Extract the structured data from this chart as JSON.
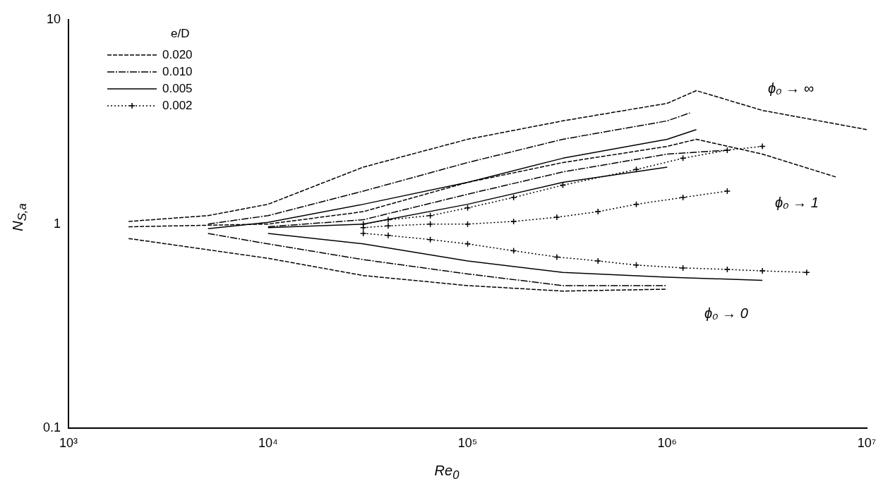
{
  "chart_data": {
    "type": "line",
    "xlabel": "Re$_{0}$",
    "ylabel": "N$_{S,a}$",
    "legend_title": "e/D",
    "legend": "top left",
    "log": "xy",
    "grid": false,
    "xlim": [
      1000,
      10000000
    ],
    "xticks": [
      {
        "value": 1000,
        "label": "10³"
      },
      {
        "value": 10000,
        "label": "10⁴"
      },
      {
        "value": 100000,
        "label": "10⁵"
      },
      {
        "value": 1000000,
        "label": "10⁶"
      },
      {
        "value": 10000000,
        "label": "10⁷"
      }
    ],
    "ylim": [
      0.1,
      10
    ],
    "yticks": [
      0.1,
      1,
      10
    ],
    "series": [
      {
        "name": "0.020",
        "color": "#000000",
        "line_style": "dashed",
        "marker": "none",
        "x": [
          2000,
          5000,
          10000,
          30000,
          100000,
          300000,
          1000000,
          1400000,
          3000000,
          10000000
        ],
        "values": [
          1.03,
          1.1,
          1.25,
          1.9,
          2.6,
          3.2,
          3.9,
          4.5,
          3.6,
          2.9
        ]
      },
      {
        "name": "0.010",
        "color": "#000000",
        "line_style": "dashdot",
        "marker": "none",
        "x": [
          5000,
          10000,
          30000,
          100000,
          300000,
          1000000,
          1300000
        ],
        "values": [
          1.0,
          1.1,
          1.45,
          2.0,
          2.6,
          3.2,
          3.5
        ]
      },
      {
        "name": "0.005",
        "color": "#000000",
        "line_style": "solid",
        "marker": "none",
        "x": [
          5000,
          10000,
          30000,
          100000,
          300000,
          1000000,
          1400000
        ],
        "values": [
          0.95,
          1.02,
          1.25,
          1.6,
          2.1,
          2.6,
          2.9
        ]
      },
      {
        "name": "0.002",
        "color": "#000000",
        "line_style": "dotted",
        "marker": "cross",
        "x": [
          30000,
          40000,
          65000,
          100000,
          170000,
          300000,
          700000,
          1200000,
          2000000,
          3000000
        ],
        "values": [
          1.0,
          1.05,
          1.1,
          1.2,
          1.35,
          1.55,
          1.85,
          2.1,
          2.3,
          2.4
        ]
      },
      {
        "color": "#000000",
        "line_style": "dashed",
        "marker": "none",
        "x": [
          2000,
          10000,
          30000,
          100000,
          300000,
          1000000,
          1400000,
          3000000,
          7000000
        ],
        "values": [
          0.97,
          1.0,
          1.15,
          1.6,
          2.0,
          2.4,
          2.6,
          2.2,
          1.7
        ]
      },
      {
        "color": "#000000",
        "line_style": "dashdot",
        "marker": "none",
        "x": [
          10000,
          30000,
          100000,
          300000,
          1000000,
          2000000
        ],
        "values": [
          0.97,
          1.05,
          1.4,
          1.8,
          2.2,
          2.3
        ]
      },
      {
        "color": "#000000",
        "line_style": "solid",
        "marker": "none",
        "x": [
          10000,
          30000,
          100000,
          300000,
          1000000
        ],
        "values": [
          0.96,
          1.0,
          1.25,
          1.6,
          1.9
        ]
      },
      {
        "color": "#000000",
        "line_style": "dotted",
        "marker": "cross",
        "x": [
          30000,
          40000,
          65000,
          100000,
          170000,
          280000,
          450000,
          700000,
          1200000,
          2000000
        ],
        "values": [
          0.96,
          0.98,
          1.0,
          1.0,
          1.03,
          1.08,
          1.15,
          1.25,
          1.35,
          1.45
        ]
      },
      {
        "color": "#000000",
        "line_style": "dashed",
        "marker": "none",
        "x": [
          2000,
          10000,
          30000,
          100000,
          300000,
          1000000
        ],
        "values": [
          0.85,
          0.68,
          0.56,
          0.5,
          0.47,
          0.48
        ]
      },
      {
        "color": "#000000",
        "line_style": "dashdot",
        "marker": "none",
        "x": [
          5000,
          10000,
          30000,
          100000,
          300000,
          1000000
        ],
        "values": [
          0.9,
          0.8,
          0.67,
          0.57,
          0.5,
          0.5
        ]
      },
      {
        "color": "#000000",
        "line_style": "solid",
        "marker": "none",
        "x": [
          10000,
          30000,
          100000,
          300000,
          1000000,
          3000000
        ],
        "values": [
          0.9,
          0.8,
          0.66,
          0.58,
          0.55,
          0.53
        ]
      },
      {
        "color": "#000000",
        "line_style": "dotted",
        "marker": "cross",
        "x": [
          30000,
          40000,
          65000,
          100000,
          170000,
          280000,
          450000,
          700000,
          1200000,
          2000000,
          3000000,
          5000000
        ],
        "values": [
          0.9,
          0.88,
          0.84,
          0.8,
          0.74,
          0.69,
          0.66,
          0.63,
          0.61,
          0.6,
          0.59,
          0.58
        ]
      }
    ],
    "annotations": [
      "ϕ₀ → ∞",
      "ϕ₀ → 1",
      "ϕ₀ → 0"
    ]
  }
}
